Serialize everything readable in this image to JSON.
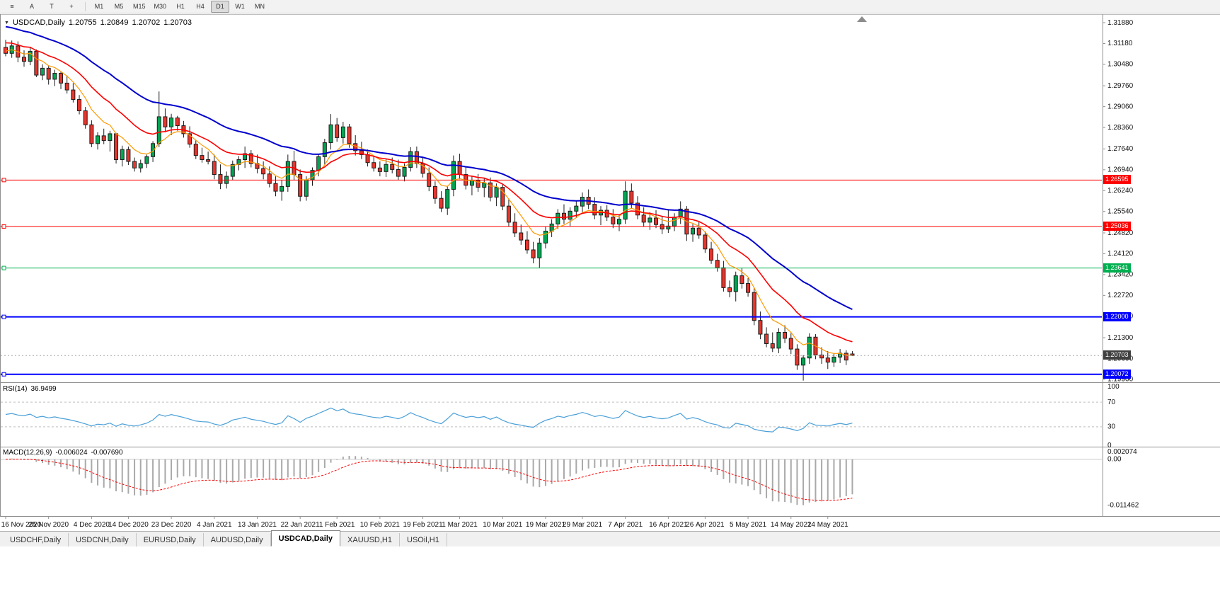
{
  "toolbar": {
    "tools": [
      {
        "name": "chart-list",
        "glyph": "≡"
      },
      {
        "name": "cursor-tool",
        "glyph": "A"
      },
      {
        "name": "text-tool",
        "glyph": "T"
      },
      {
        "name": "draw-tool",
        "glyph": "+"
      }
    ],
    "timeframes": [
      {
        "label": "M1"
      },
      {
        "label": "M5"
      },
      {
        "label": "M15"
      },
      {
        "label": "M30"
      },
      {
        "label": "H1"
      },
      {
        "label": "H4"
      },
      {
        "label": "D1",
        "active": true
      },
      {
        "label": "W1"
      },
      {
        "label": "MN"
      }
    ]
  },
  "chart": {
    "title": {
      "dropdown": "▼",
      "symbol": "USDCAD,Daily",
      "open": "1.20755",
      "high": "1.20849",
      "low": "1.20702",
      "close": "1.20703"
    },
    "rsi_label": {
      "name": "RSI(14)",
      "value": "36.9499"
    },
    "macd_label": {
      "name": "MACD(12,26,9)",
      "main": "-0.006024",
      "signal": "-0.007690"
    }
  },
  "chart_data": {
    "type": "candlestick",
    "symbol": "USDCAD",
    "timeframe": "Daily",
    "price_range": {
      "min": 1.19852,
      "max": 1.32118
    },
    "y_axis_labels": [
      "1.31880",
      "1.31180",
      "1.30480",
      "1.29760",
      "1.29060",
      "1.28360",
      "1.27640",
      "1.26940",
      "1.26240",
      "1.25540",
      "1.24820",
      "1.24120",
      "1.23420",
      "1.22720",
      "1.22020",
      "1.21300",
      "1.20600",
      "1.19900"
    ],
    "x_labels": [
      {
        "text": "16 Nov 2020",
        "bar": 0
      },
      {
        "text": "25 Nov 2020",
        "bar": 7
      },
      {
        "text": "4 Dec 2020",
        "bar": 14
      },
      {
        "text": "14 Dec 2020",
        "bar": 20
      },
      {
        "text": "23 Dec 2020",
        "bar": 27
      },
      {
        "text": "4 Jan 2021",
        "bar": 34
      },
      {
        "text": "13 Jan 2021",
        "bar": 41
      },
      {
        "text": "22 Jan 2021",
        "bar": 48
      },
      {
        "text": "1 Feb 2021",
        "bar": 54
      },
      {
        "text": "10 Feb 2021",
        "bar": 61
      },
      {
        "text": "19 Feb 2021",
        "bar": 68
      },
      {
        "text": "1 Mar 2021",
        "bar": 74
      },
      {
        "text": "10 Mar 2021",
        "bar": 81
      },
      {
        "text": "19 Mar 2021",
        "bar": 88
      },
      {
        "text": "29 Mar 2021",
        "bar": 94
      },
      {
        "text": "7 Apr 2021",
        "bar": 101
      },
      {
        "text": "16 Apr 2021",
        "bar": 108
      },
      {
        "text": "26 Apr 2021",
        "bar": 114
      },
      {
        "text": "5 May 2021",
        "bar": 121
      },
      {
        "text": "14 May 2021",
        "bar": 128
      },
      {
        "text": "24 May 2021",
        "bar": 134
      }
    ],
    "ohlc": [
      [
        1.3105,
        1.313,
        1.3075,
        1.3085
      ],
      [
        1.3085,
        1.3128,
        1.307,
        1.311
      ],
      [
        1.311,
        1.3125,
        1.3055,
        1.3072
      ],
      [
        1.3072,
        1.3095,
        1.304,
        1.3058
      ],
      [
        1.3058,
        1.3105,
        1.3045,
        1.3092
      ],
      [
        1.3092,
        1.3098,
        1.3005,
        1.3012
      ],
      [
        1.3012,
        1.3048,
        1.2995,
        1.3035
      ],
      [
        1.3035,
        1.3042,
        1.298,
        1.2998
      ],
      [
        1.2998,
        1.303,
        1.2975,
        1.3018
      ],
      [
        1.3018,
        1.3025,
        1.2965,
        1.2985
      ],
      [
        1.2985,
        1.301,
        1.295,
        1.2962
      ],
      [
        1.2962,
        1.2985,
        1.292,
        1.293
      ],
      [
        1.293,
        1.2945,
        1.288,
        1.2892
      ],
      [
        1.2892,
        1.2905,
        1.2832,
        1.2845
      ],
      [
        1.2845,
        1.286,
        1.277,
        1.2782
      ],
      [
        1.2782,
        1.282,
        1.2762,
        1.2808
      ],
      [
        1.2808,
        1.2832,
        1.278,
        1.2792
      ],
      [
        1.2792,
        1.2825,
        1.2755,
        1.2815
      ],
      [
        1.2815,
        1.2818,
        1.2715,
        1.2728
      ],
      [
        1.2728,
        1.2775,
        1.2705,
        1.2762
      ],
      [
        1.2762,
        1.2772,
        1.271,
        1.2722
      ],
      [
        1.2722,
        1.2735,
        1.2688,
        1.27
      ],
      [
        1.27,
        1.2728,
        1.2685,
        1.2715
      ],
      [
        1.2715,
        1.2745,
        1.27,
        1.2738
      ],
      [
        1.2738,
        1.279,
        1.272,
        1.2782
      ],
      [
        1.2782,
        1.2957,
        1.277,
        1.2872
      ],
      [
        1.2872,
        1.29,
        1.282,
        1.2838
      ],
      [
        1.2838,
        1.2882,
        1.281,
        1.2868
      ],
      [
        1.2868,
        1.2875,
        1.2825,
        1.2842
      ],
      [
        1.2842,
        1.2858,
        1.2802,
        1.2815
      ],
      [
        1.2815,
        1.284,
        1.2768,
        1.278
      ],
      [
        1.278,
        1.2795,
        1.273,
        1.2742
      ],
      [
        1.2742,
        1.2768,
        1.2718,
        1.2728
      ],
      [
        1.2728,
        1.2755,
        1.2712,
        1.2722
      ],
      [
        1.2722,
        1.2745,
        1.2662,
        1.2678
      ],
      [
        1.2678,
        1.2712,
        1.2629,
        1.2648
      ],
      [
        1.2648,
        1.2688,
        1.2631,
        1.2672
      ],
      [
        1.2672,
        1.2725,
        1.266,
        1.2712
      ],
      [
        1.2712,
        1.274,
        1.2692,
        1.2728
      ],
      [
        1.2728,
        1.2772,
        1.27,
        1.2748
      ],
      [
        1.2748,
        1.276,
        1.2702,
        1.2715
      ],
      [
        1.2715,
        1.2745,
        1.2682,
        1.2698
      ],
      [
        1.2698,
        1.2722,
        1.2662,
        1.268
      ],
      [
        1.268,
        1.2705,
        1.2635,
        1.2648
      ],
      [
        1.2648,
        1.2672,
        1.2605,
        1.2622
      ],
      [
        1.2622,
        1.266,
        1.259,
        1.2638
      ],
      [
        1.2638,
        1.2745,
        1.262,
        1.2722
      ],
      [
        1.2722,
        1.2758,
        1.266,
        1.2678
      ],
      [
        1.2678,
        1.2695,
        1.2588,
        1.2605
      ],
      [
        1.2605,
        1.2672,
        1.259,
        1.266
      ],
      [
        1.266,
        1.2702,
        1.264,
        1.2692
      ],
      [
        1.2692,
        1.2748,
        1.2672,
        1.2738
      ],
      [
        1.2738,
        1.2798,
        1.271,
        1.2785
      ],
      [
        1.2785,
        1.2881,
        1.2762,
        1.2845
      ],
      [
        1.2845,
        1.2868,
        1.2788,
        1.2802
      ],
      [
        1.2802,
        1.2855,
        1.2782,
        1.2838
      ],
      [
        1.2838,
        1.2848,
        1.2768,
        1.2782
      ],
      [
        1.2782,
        1.281,
        1.2742,
        1.2758
      ],
      [
        1.2758,
        1.2788,
        1.273,
        1.2745
      ],
      [
        1.2745,
        1.2762,
        1.2705,
        1.2718
      ],
      [
        1.2718,
        1.274,
        1.2688,
        1.27
      ],
      [
        1.27,
        1.2722,
        1.2672,
        1.2688
      ],
      [
        1.2688,
        1.273,
        1.267,
        1.2712
      ],
      [
        1.2712,
        1.2735,
        1.2682,
        1.2695
      ],
      [
        1.2695,
        1.2728,
        1.266,
        1.2672
      ],
      [
        1.2672,
        1.2715,
        1.2655,
        1.2702
      ],
      [
        1.2702,
        1.277,
        1.2688,
        1.2755
      ],
      [
        1.2755,
        1.2772,
        1.27,
        1.2715
      ],
      [
        1.2715,
        1.2738,
        1.2668,
        1.2682
      ],
      [
        1.2682,
        1.2702,
        1.2622,
        1.2638
      ],
      [
        1.2638,
        1.2655,
        1.258,
        1.2598
      ],
      [
        1.2598,
        1.2622,
        1.2552,
        1.2565
      ],
      [
        1.2565,
        1.264,
        1.2542,
        1.2628
      ],
      [
        1.2628,
        1.2742,
        1.2605,
        1.2722
      ],
      [
        1.2722,
        1.2748,
        1.2662,
        1.2678
      ],
      [
        1.2678,
        1.2705,
        1.2628,
        1.2642
      ],
      [
        1.2642,
        1.2672,
        1.2608,
        1.2658
      ],
      [
        1.2658,
        1.268,
        1.262,
        1.2635
      ],
      [
        1.2635,
        1.2665,
        1.2602,
        1.265
      ],
      [
        1.265,
        1.2668,
        1.2588,
        1.2602
      ],
      [
        1.2602,
        1.2648,
        1.2572,
        1.2635
      ],
      [
        1.2635,
        1.2645,
        1.2558,
        1.2572
      ],
      [
        1.2572,
        1.2595,
        1.2502,
        1.2518
      ],
      [
        1.2518,
        1.2548,
        1.2468,
        1.2482
      ],
      [
        1.2482,
        1.251,
        1.2442,
        1.2458
      ],
      [
        1.2458,
        1.2488,
        1.2412,
        1.2425
      ],
      [
        1.2425,
        1.2452,
        1.238,
        1.2398
      ],
      [
        1.2398,
        1.2465,
        1.2365,
        1.2448
      ],
      [
        1.2448,
        1.2502,
        1.243,
        1.2488
      ],
      [
        1.2488,
        1.2528,
        1.2468,
        1.2512
      ],
      [
        1.2512,
        1.2562,
        1.2495,
        1.2548
      ],
      [
        1.2548,
        1.2578,
        1.2512,
        1.2528
      ],
      [
        1.2528,
        1.2568,
        1.2505,
        1.2555
      ],
      [
        1.2555,
        1.2588,
        1.2532,
        1.2572
      ],
      [
        1.2572,
        1.2618,
        1.2552,
        1.2602
      ],
      [
        1.2602,
        1.2628,
        1.2562,
        1.2578
      ],
      [
        1.2578,
        1.2602,
        1.2528,
        1.2542
      ],
      [
        1.2542,
        1.2572,
        1.2508,
        1.2558
      ],
      [
        1.2558,
        1.2575,
        1.2522,
        1.2535
      ],
      [
        1.2535,
        1.2562,
        1.2498,
        1.2512
      ],
      [
        1.2512,
        1.2545,
        1.2488,
        1.2528
      ],
      [
        1.2528,
        1.2655,
        1.2512,
        1.2622
      ],
      [
        1.2622,
        1.2648,
        1.2565,
        1.2582
      ],
      [
        1.2582,
        1.2605,
        1.2528,
        1.2542
      ],
      [
        1.2542,
        1.2568,
        1.2502,
        1.2518
      ],
      [
        1.2518,
        1.2552,
        1.2492,
        1.2532
      ],
      [
        1.2532,
        1.2558,
        1.2498,
        1.251
      ],
      [
        1.251,
        1.2538,
        1.2478,
        1.2495
      ],
      [
        1.2495,
        1.2562,
        1.2482,
        1.2505
      ],
      [
        1.2505,
        1.2548,
        1.2488,
        1.2535
      ],
      [
        1.2535,
        1.2588,
        1.2512,
        1.2562
      ],
      [
        1.2562,
        1.2572,
        1.2455,
        1.2478
      ],
      [
        1.2478,
        1.2512,
        1.2452,
        1.2498
      ],
      [
        1.2498,
        1.2518,
        1.2462,
        1.2475
      ],
      [
        1.2475,
        1.2488,
        1.2415,
        1.2428
      ],
      [
        1.2428,
        1.2452,
        1.2378,
        1.239
      ],
      [
        1.239,
        1.2412,
        1.2352,
        1.2365
      ],
      [
        1.2365,
        1.2388,
        1.2285,
        1.2298
      ],
      [
        1.2298,
        1.2322,
        1.2266,
        1.2285
      ],
      [
        1.2285,
        1.2352,
        1.2252,
        1.2338
      ],
      [
        1.2338,
        1.2365,
        1.2295,
        1.2312
      ],
      [
        1.2312,
        1.233,
        1.2268,
        1.2282
      ],
      [
        1.2282,
        1.2298,
        1.2172,
        1.2188
      ],
      [
        1.2188,
        1.2218,
        1.2125,
        1.2142
      ],
      [
        1.2142,
        1.2165,
        1.2098,
        1.211
      ],
      [
        1.211,
        1.2148,
        1.2082,
        1.2095
      ],
      [
        1.2095,
        1.2162,
        1.2078,
        1.2148
      ],
      [
        1.2148,
        1.2172,
        1.2112,
        1.2128
      ],
      [
        1.2128,
        1.2145,
        1.2075,
        1.2092
      ],
      [
        1.2092,
        1.2108,
        1.2022,
        1.2038
      ],
      [
        1.2038,
        1.2072,
        1.1986,
        1.2062
      ],
      [
        1.2062,
        1.2145,
        1.2042,
        1.2132
      ],
      [
        1.2132,
        1.2142,
        1.2058,
        1.2072
      ],
      [
        1.2072,
        1.2098,
        1.2042,
        1.2062
      ],
      [
        1.2062,
        1.2085,
        1.2025,
        1.2048
      ],
      [
        1.2048,
        1.2078,
        1.2032,
        1.2065
      ],
      [
        1.2065,
        1.2092,
        1.2045,
        1.2078
      ],
      [
        1.2078,
        1.2088,
        1.2038,
        1.2055
      ],
      [
        1.20755,
        1.20849,
        1.20702,
        1.20703
      ]
    ],
    "moving_averages": [
      {
        "name": "ma-fast-orange",
        "period": 7,
        "seed": 1.3095,
        "color": "#ff9900",
        "width": 1.2
      },
      {
        "name": "ma-mid-red",
        "period": 16,
        "seed": 1.3125,
        "color": "#ff0000",
        "width": 1.6
      },
      {
        "name": "ma-slow-blue",
        "period": 34,
        "seed": 1.318,
        "color": "#0000cd",
        "width": 2
      }
    ],
    "h_lines": [
      {
        "label": "1.26595",
        "price": 1.26595,
        "color": "#ff0000",
        "width": 1
      },
      {
        "label": "1.25036",
        "price": 1.25036,
        "color": "#ff0000",
        "width": 1
      },
      {
        "label": "1.23641",
        "price": 1.23641,
        "color": "#00b050",
        "width": 1
      },
      {
        "label": "1.22000",
        "price": 1.22,
        "color": "#0000ff",
        "width": 2
      },
      {
        "label": "1.20072",
        "price": 1.20072,
        "color": "#0000ff",
        "width": 2
      }
    ],
    "current_price": {
      "label": "1.20703",
      "price": 1.20703,
      "tag_color": "#404040"
    },
    "rsi": {
      "period": 14,
      "color": "#4a9fd8",
      "levels": [
        70,
        30
      ],
      "axis_labels": [
        {
          "text": "100",
          "value": 100
        },
        {
          "text": "70",
          "value": 70
        },
        {
          "text": "30",
          "value": 30
        },
        {
          "text": "0",
          "value": 0
        }
      ]
    },
    "macd": {
      "fast": 12,
      "slow": 26,
      "signal": 9,
      "hist_color": "#a9a9a9",
      "signal_color": "#ff0000",
      "range": {
        "min": -0.0138,
        "max": 0.0028
      },
      "axis_labels": [
        {
          "text": "0.002074",
          "value": 0.002074
        },
        {
          "text": "0.00",
          "value": 0
        },
        {
          "text": "-0.011462",
          "value": -0.011462
        }
      ]
    },
    "colors": {
      "bull": "#00a651",
      "bear": "#e8352c",
      "outline": "#1c1c1c",
      "background": "#ffffff",
      "panel_border": "#8f8f8f",
      "axis_text": "#111111",
      "level_dash": "#bdbdbd",
      "zero_line": "#c9c9c9",
      "shift_marker": "#8c8c8c",
      "current_line": "#aaaaaa"
    }
  },
  "tabs": [
    {
      "label": "USDCHF,Daily"
    },
    {
      "label": "USDCNH,Daily"
    },
    {
      "label": "EURUSD,Daily"
    },
    {
      "label": "AUDUSD,Daily"
    },
    {
      "label": "USDCAD,Daily",
      "active": true
    },
    {
      "label": "XAUUSD,H1"
    },
    {
      "label": "USOil,H1"
    }
  ]
}
